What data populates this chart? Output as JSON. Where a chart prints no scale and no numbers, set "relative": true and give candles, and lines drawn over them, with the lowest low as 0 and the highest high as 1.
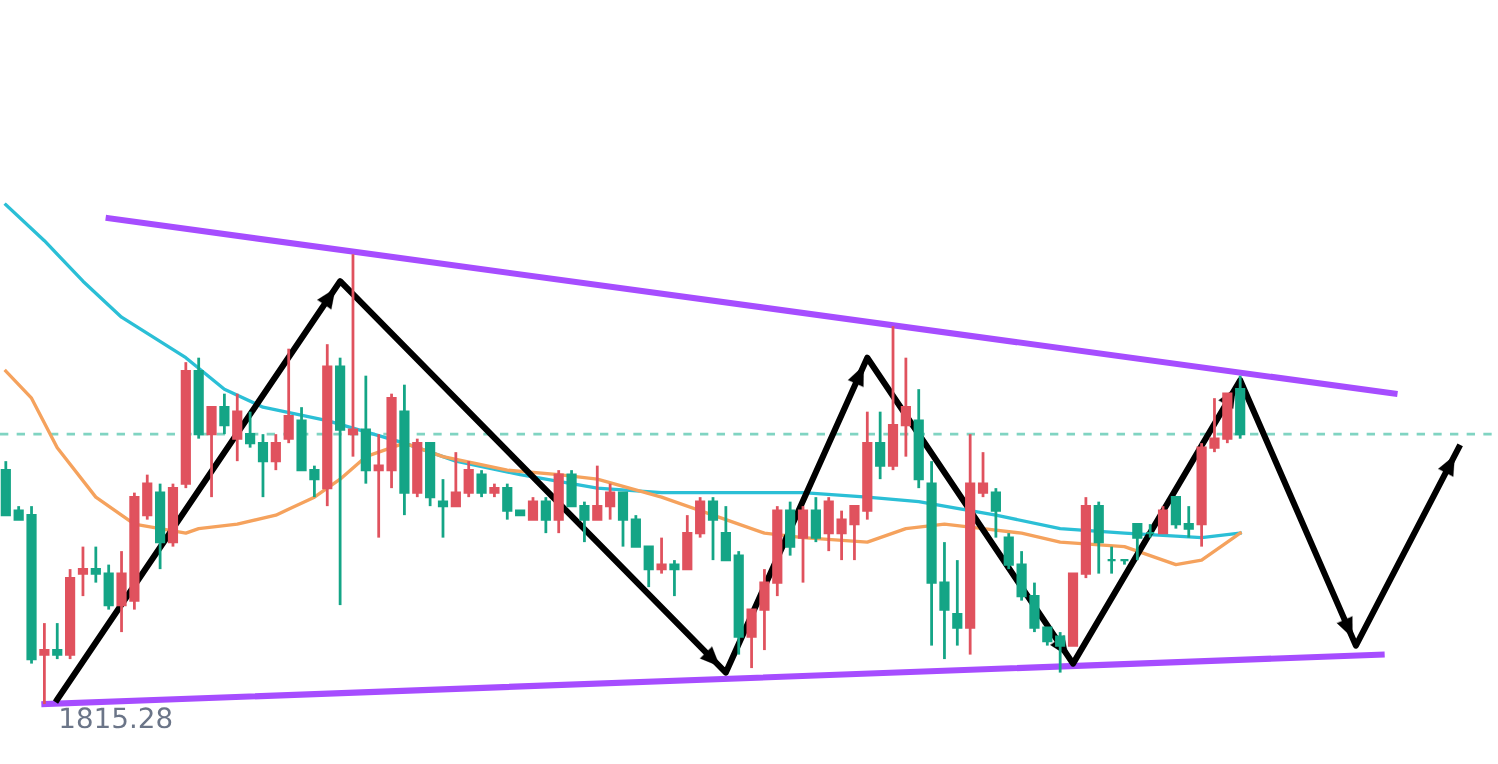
{
  "chart_data": {
    "type": "candlestick",
    "relative": true,
    "categories": [
      null,
      null,
      null,
      null,
      null,
      null,
      null,
      null,
      null,
      null,
      null,
      null,
      null,
      null,
      null,
      null,
      null,
      null,
      null,
      null,
      null,
      null,
      null,
      null,
      null,
      null,
      null,
      null,
      null,
      null,
      null,
      null,
      null,
      null,
      null,
      null,
      null,
      null,
      null,
      null,
      null,
      null,
      null,
      null,
      null,
      null,
      null,
      null,
      null,
      null,
      null,
      null,
      null,
      null,
      null,
      null,
      null,
      null,
      null,
      null,
      null,
      null,
      null,
      null,
      null,
      null,
      null,
      null,
      null,
      null,
      null,
      null,
      null,
      null,
      null,
      null,
      null,
      null,
      null,
      null,
      null,
      null,
      null,
      null,
      null,
      null,
      null,
      null,
      null,
      null,
      null,
      null,
      null,
      null,
      null,
      null,
      null,
      null,
      null,
      null,
      null,
      null,
      null,
      null,
      null,
      null,
      null,
      null,
      null,
      null,
      null,
      null,
      null,
      null
    ],
    "ohlc": [
      [
        0.52,
        0.54,
        0.42,
        0.42
      ],
      [
        0.43,
        0.44,
        0.41,
        0.41
      ],
      [
        0.42,
        0.44,
        0.09,
        0.1
      ],
      [
        0.11,
        0.18,
        0,
        0.12
      ],
      [
        0.12,
        0.18,
        0.1,
        0.11
      ],
      [
        0.11,
        0.3,
        0.1,
        0.28
      ],
      [
        0.29,
        0.35,
        0.24,
        0.3
      ],
      [
        0.3,
        0.35,
        0.27,
        0.29
      ],
      [
        0.29,
        0.31,
        0.21,
        0.22
      ],
      [
        0.22,
        0.34,
        0.16,
        0.29
      ],
      [
        0.23,
        0.47,
        0.21,
        0.46
      ],
      [
        0.42,
        0.51,
        0.41,
        0.49
      ],
      [
        0.47,
        0.49,
        0.3,
        0.36
      ],
      [
        0.36,
        0.49,
        0.35,
        0.48
      ],
      [
        0.49,
        0.76,
        0.48,
        0.74
      ],
      [
        0.74,
        0.77,
        0.59,
        0.6
      ],
      [
        0.6,
        0.66,
        0.46,
        0.66
      ],
      [
        0.66,
        0.69,
        0.6,
        0.62
      ],
      [
        0.59,
        0.69,
        0.54,
        0.65
      ],
      [
        0.6,
        0.65,
        0.57,
        0.58
      ],
      [
        0.58,
        0.6,
        0.46,
        0.54
      ],
      [
        0.54,
        0.6,
        0.52,
        0.58
      ],
      [
        0.59,
        0.79,
        0.58,
        0.64
      ],
      [
        0.63,
        0.66,
        0.52,
        0.52
      ],
      [
        0.52,
        0.53,
        0.46,
        0.5
      ],
      [
        0.48,
        0.8,
        0.44,
        0.75
      ],
      [
        0.75,
        0.77,
        0.22,
        0.61
      ],
      [
        0.6,
        1,
        0.55,
        0.61
      ],
      [
        0.61,
        0.73,
        0.49,
        0.52
      ],
      [
        0.52,
        0.6,
        0.37,
        0.53
      ],
      [
        0.52,
        0.69,
        0.48,
        0.68
      ],
      [
        0.65,
        0.71,
        0.42,
        0.47
      ],
      [
        0.47,
        0.59,
        0.46,
        0.58
      ],
      [
        0.58,
        0.58,
        0.44,
        0.46
      ],
      [
        0.45,
        0.5,
        0.37,
        0.44
      ],
      [
        0.44,
        0.56,
        0.44,
        0.47
      ],
      [
        0.47,
        0.54,
        0.46,
        0.52
      ],
      [
        0.51,
        0.52,
        0.46,
        0.47
      ],
      [
        0.47,
        0.49,
        0.46,
        0.48
      ],
      [
        0.48,
        0.49,
        0.41,
        0.43
      ],
      [
        0.43,
        0.43,
        0.42,
        0.42
      ],
      [
        0.41,
        0.46,
        0.41,
        0.45
      ],
      [
        0.45,
        0.46,
        0.38,
        0.41
      ],
      [
        0.41,
        0.52,
        0.38,
        0.51
      ],
      [
        0.51,
        0.52,
        0.44,
        0.44
      ],
      [
        0.44,
        0.45,
        0.36,
        0.41
      ],
      [
        0.41,
        0.53,
        0.41,
        0.44
      ],
      [
        0.44,
        0.49,
        0.41,
        0.47
      ],
      [
        0.47,
        0.47,
        0.35,
        0.41
      ],
      [
        0.41,
        0.42,
        0.35,
        0.35
      ],
      [
        0.35,
        0.35,
        0.26,
        0.3
      ],
      [
        0.3,
        0.37,
        0.29,
        0.31
      ],
      [
        0.31,
        0.32,
        0.24,
        0.3
      ],
      [
        0.3,
        0.42,
        0.3,
        0.38
      ],
      [
        0.38,
        0.46,
        0.37,
        0.45
      ],
      [
        0.45,
        0.46,
        0.32,
        0.41
      ],
      [
        0.38,
        0.44,
        0.32,
        0.32
      ],
      [
        0.33,
        0.34,
        0.11,
        0.15
      ],
      [
        0.15,
        0.21,
        0.08,
        0.21
      ],
      [
        0.21,
        0.3,
        0.12,
        0.27
      ],
      [
        0.27,
        0.44,
        0.24,
        0.43
      ],
      [
        0.43,
        0.45,
        0.33,
        0.35
      ],
      [
        0.37,
        0.44,
        0.27,
        0.43
      ],
      [
        0.43,
        0.46,
        0.36,
        0.37
      ],
      [
        0.38,
        0.46,
        0.34,
        0.45
      ],
      [
        0.38,
        0.43,
        0.32,
        0.41
      ],
      [
        0.4,
        0.44,
        0.32,
        0.44
      ],
      [
        0.43,
        0.65,
        0.41,
        0.58
      ],
      [
        0.58,
        0.65,
        0.5,
        0.53
      ],
      [
        0.53,
        0.84,
        0.52,
        0.62
      ],
      [
        0.62,
        0.77,
        0.55,
        0.66
      ],
      [
        0.63,
        0.7,
        0.48,
        0.5
      ],
      [
        0.49,
        0.54,
        0.13,
        0.27
      ],
      [
        0.27,
        0.36,
        0.1,
        0.21
      ],
      [
        0.2,
        0.32,
        0.13,
        0.17
      ],
      [
        0.17,
        0.6,
        0.11,
        0.49
      ],
      [
        0.47,
        0.56,
        0.46,
        0.49
      ],
      [
        0.47,
        0.48,
        0.37,
        0.43
      ],
      [
        0.37,
        0.38,
        0.3,
        0.31
      ],
      [
        0.31,
        0.34,
        0.23,
        0.24
      ],
      [
        0.24,
        0.27,
        0.16,
        0.17
      ],
      [
        0.17,
        0.17,
        0.13,
        0.14
      ],
      [
        0.15,
        0.16,
        0.07,
        0.13
      ],
      [
        0.13,
        0.29,
        0.13,
        0.29
      ],
      [
        0.29,
        0.46,
        0.28,
        0.44
      ],
      [
        0.44,
        0.45,
        0.29,
        0.36
      ],
      [
        0.32,
        0.35,
        0.29,
        0.32
      ],
      [
        0.32,
        0.32,
        0.31,
        0.32
      ],
      [
        0.4,
        0.4,
        0.32,
        0.37
      ],
      [
        0.38,
        0.4,
        0.37,
        0.38
      ],
      [
        0.38,
        0.44,
        0.38,
        0.43
      ],
      [
        0.46,
        0.46,
        0.39,
        0.4
      ],
      [
        0.4,
        0.44,
        0.37,
        0.39
      ],
      [
        0.4,
        0.58,
        0.35,
        0.57
      ],
      [
        0.57,
        0.68,
        0.56,
        0.59
      ],
      [
        0.59,
        0.69,
        0.58,
        0.69
      ],
      [
        0.7,
        0.73,
        0.59,
        0.6
      ],
      null,
      null,
      null,
      null,
      null,
      null,
      null,
      null,
      null,
      null,
      null,
      null,
      null,
      null,
      null,
      null,
      null
    ],
    "colors": [
      "#14a586",
      "#14a586",
      "#14a586",
      "#e0525e",
      "#14a586",
      "#e0525e",
      "#e0525e",
      "#14a586",
      "#14a586",
      "#e0525e",
      "#e0525e",
      "#e0525e",
      "#14a586",
      "#e0525e",
      "#e0525e",
      "#14a586",
      "#e0525e",
      "#14a586",
      "#e0525e",
      "#14a586",
      "#14a586",
      "#e0525e",
      "#e0525e",
      "#14a586",
      "#14a586",
      "#e0525e",
      "#14a586",
      "#e0525e",
      "#14a586",
      "#e0525e",
      "#e0525e",
      "#14a586",
      "#e0525e",
      "#14a586",
      "#14a586",
      "#e0525e",
      "#e0525e",
      "#14a586",
      "#e0525e",
      "#14a586",
      "#14a586",
      "#e0525e",
      "#14a586",
      "#e0525e",
      "#14a586",
      "#14a586",
      "#e0525e",
      "#e0525e",
      "#14a586",
      "#14a586",
      "#14a586",
      "#e0525e",
      "#14a586",
      "#e0525e",
      "#e0525e",
      "#14a586",
      "#14a586",
      "#14a586",
      "#e0525e",
      "#e0525e",
      "#e0525e",
      "#14a586",
      "#e0525e",
      "#14a586",
      "#e0525e",
      "#e0525e",
      "#e0525e",
      "#e0525e",
      "#14a586",
      "#e0525e",
      "#e0525e",
      "#14a586",
      "#14a586",
      "#14a586",
      "#14a586",
      "#e0525e",
      "#e0525e",
      "#14a586",
      "#14a586",
      "#14a586",
      "#14a586",
      "#14a586",
      "#14a586",
      "#e0525e",
      "#e0525e",
      "#14a586",
      "#14a586",
      "#14a586",
      "#14a586",
      "#14a586",
      "#e0525e",
      "#14a586",
      "#14a586",
      "#e0525e",
      "#e0525e",
      "#e0525e",
      "#14a586",
      null,
      null,
      null,
      null,
      null,
      null,
      null,
      null,
      null,
      null,
      null,
      null,
      null,
      null,
      null,
      null,
      null
    ],
    "series": [
      {
        "type": "line",
        "color": "#2bbfd6",
        "values": [
          1.11,
          null,
          null,
          1.03,
          null,
          null,
          0.94,
          null,
          null,
          0.86,
          null,
          null,
          null,
          null,
          0.77,
          null,
          null,
          0.7,
          null,
          null,
          0.66,
          null,
          null,
          null,
          null,
          0.63,
          null,
          null,
          null,
          null,
          null,
          0.58,
          null,
          null,
          null,
          0.54,
          null,
          null,
          null,
          null,
          0.51,
          null,
          null,
          null,
          null,
          null,
          0.48,
          null,
          null,
          null,
          null,
          0.47,
          null,
          null,
          null,
          null,
          0.47,
          null,
          null,
          null,
          null,
          null,
          0.47,
          null,
          null,
          null,
          null,
          0.46,
          null,
          null,
          null,
          0.45,
          null,
          null,
          null,
          null,
          null,
          0.42,
          null,
          null,
          null,
          null,
          0.39,
          null,
          null,
          null,
          null,
          0.38,
          null,
          null,
          null,
          null,
          null,
          0.37,
          null,
          null,
          0.38,
          null,
          null,
          null,
          null,
          null,
          null,
          null,
          null,
          null,
          null,
          null,
          null,
          null,
          null,
          null,
          null,
          null
        ]
      },
      {
        "type": "line",
        "color": "#f5a25d",
        "values": [
          0.74,
          null,
          0.68,
          null,
          0.57,
          null,
          null,
          0.46,
          null,
          null,
          0.4,
          null,
          null,
          null,
          0.38,
          0.39,
          null,
          null,
          0.4,
          null,
          null,
          0.42,
          null,
          null,
          0.46,
          null,
          0.5,
          null,
          0.55,
          null,
          null,
          0.58,
          null,
          null,
          0.55,
          null,
          null,
          null,
          null,
          0.52,
          null,
          null,
          null,
          0.51,
          null,
          null,
          0.5,
          null,
          null,
          null,
          null,
          0.46,
          null,
          null,
          null,
          null,
          0.41,
          null,
          null,
          0.38,
          null,
          null,
          0.37,
          null,
          null,
          null,
          null,
          0.36,
          null,
          null,
          0.39,
          null,
          null,
          0.4,
          null,
          null,
          0.39,
          null,
          null,
          0.38,
          null,
          null,
          0.36,
          null,
          null,
          null,
          null,
          0.35,
          null,
          null,
          0.32,
          0.31,
          null,
          0.32,
          null,
          0.36,
          0.38,
          null,
          null,
          null,
          null,
          null,
          null,
          null,
          null,
          null,
          null,
          null,
          null,
          null,
          null,
          null,
          null,
          null
        ]
      },
      {
        "type": "line",
        "color": "#a64dff",
        "values": [
          null,
          null,
          null,
          null,
          null,
          null,
          null,
          null,
          1.08,
          null,
          null,
          null,
          null,
          null,
          null,
          null,
          null,
          null,
          null,
          null,
          null,
          null,
          null,
          null,
          null,
          null,
          null,
          null,
          null,
          null,
          null,
          null,
          null,
          null,
          null,
          null,
          null,
          null,
          null,
          null,
          null,
          null,
          null,
          null,
          null,
          null,
          null,
          null,
          null,
          null,
          null,
          null,
          null,
          null,
          null,
          null,
          null,
          null,
          null,
          null,
          null,
          null,
          null,
          null,
          null,
          null,
          null,
          null,
          null,
          null,
          null,
          null,
          null,
          null,
          null,
          null,
          null,
          null,
          null,
          null,
          null,
          null,
          null,
          null,
          null,
          null,
          null,
          null,
          null,
          null,
          null,
          null,
          null,
          null,
          null,
          null,
          null,
          null,
          null,
          null,
          null,
          null,
          null,
          null,
          null,
          null,
          null,
          null,
          0.69,
          null,
          null,
          null,
          null,
          null
        ]
      },
      {
        "type": "line",
        "color": "#a64dff",
        "values": [
          null,
          null,
          null,
          0.0,
          null,
          null,
          null,
          null,
          null,
          null,
          null,
          null,
          null,
          null,
          null,
          null,
          null,
          null,
          null,
          null,
          null,
          null,
          null,
          null,
          null,
          null,
          null,
          null,
          null,
          null,
          null,
          null,
          null,
          null,
          null,
          null,
          null,
          null,
          null,
          null,
          null,
          null,
          null,
          null,
          null,
          null,
          null,
          null,
          null,
          null,
          null,
          null,
          null,
          null,
          null,
          null,
          null,
          null,
          null,
          null,
          null,
          null,
          null,
          null,
          null,
          null,
          null,
          null,
          null,
          null,
          null,
          null,
          null,
          null,
          null,
          null,
          null,
          null,
          null,
          null,
          null,
          null,
          null,
          null,
          null,
          null,
          null,
          null,
          null,
          null,
          null,
          null,
          null,
          null,
          null,
          null,
          null,
          null,
          null,
          null,
          null,
          null,
          null,
          null,
          null,
          null,
          null,
          0.11,
          null,
          null,
          null,
          null,
          null,
          null
        ]
      },
      {
        "type": "line",
        "line_style": "solid",
        "color": "#000000",
        "values": [
          null,
          null,
          null,
          null,
          0.01,
          null,
          null,
          null,
          null,
          null,
          null,
          null,
          null,
          null,
          null,
          null,
          null,
          null,
          null,
          null,
          null,
          null,
          null,
          null,
          null,
          null,
          0.94,
          null,
          null,
          null,
          null,
          null,
          null,
          null,
          null,
          null,
          null,
          null,
          null,
          null,
          null,
          null,
          null,
          null,
          null,
          null,
          null,
          null,
          null,
          null,
          null,
          null,
          null,
          null,
          null,
          null,
          0.07,
          null,
          null,
          null,
          null,
          null,
          null,
          null,
          null,
          null,
          null,
          0.77,
          null,
          null,
          null,
          null,
          null,
          null,
          null,
          null,
          null,
          null,
          null,
          null,
          null,
          null,
          null,
          0.09,
          null,
          null,
          null,
          null,
          null,
          null,
          null,
          null,
          null,
          null,
          null,
          null,
          0.72,
          null,
          null,
          null,
          null,
          null,
          null,
          null,
          null,
          0.13,
          null,
          null,
          null,
          null,
          null,
          null,
          null,
          0.57
        ]
      }
    ],
    "ref_lines": [
      {
        "axis": "y",
        "value": 0.6,
        "color": "#80d4c2",
        "line_style": "dashed"
      }
    ],
    "annotations": [
      {
        "text": "1815.28",
        "y": 0
      }
    ]
  }
}
